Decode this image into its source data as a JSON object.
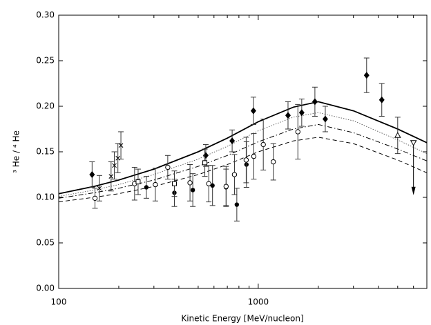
{
  "chart_data": {
    "type": "scatter",
    "x_label": "Kinetic Energy [MeV/nucleon]",
    "y_label": "³ He / ⁴ He",
    "log_x": true,
    "xlim": [
      100,
      7000
    ],
    "ylim": [
      0,
      0.3
    ],
    "xticks": [
      100,
      1000
    ],
    "xminorticks": [
      200,
      300,
      400,
      500,
      600,
      700,
      800,
      900,
      2000,
      3000,
      4000,
      5000,
      6000,
      7000
    ],
    "yticks": [
      {
        "value": 0,
        "label": "0.00"
      },
      0.05,
      {
        "value": 0.1,
        "label": "0.10"
      },
      0.15,
      {
        "value": 0.2,
        "label": "0.20"
      },
      0.25,
      {
        "value": 0.3,
        "label": "0.30"
      }
    ],
    "series": [
      {
        "marker": "diamond-filled",
        "color": "#000000",
        "x": [
          147,
          546,
          740,
          946,
          1410,
          1652,
          1923,
          2168,
          3493,
          4161
        ],
        "values": [
          0.125,
          0.146,
          0.162,
          0.195,
          0.19,
          0.193,
          0.205,
          0.186,
          0.234,
          0.207
        ],
        "errors": [
          0.014,
          0.012,
          0.012,
          0.015,
          0.015,
          0.015,
          0.016,
          0.014,
          0.019,
          0.018
        ]
      },
      {
        "marker": "circle-filled",
        "color": "#000000",
        "x": [
          275,
          380,
          470,
          590,
          690,
          781,
          873
        ],
        "values": [
          0.111,
          0.105,
          0.108,
          0.113,
          0.111,
          0.092,
          0.136
        ],
        "errors": [
          0.012,
          0.015,
          0.018,
          0.022,
          0.02,
          0.018,
          0.025
        ]
      },
      {
        "marker": "circle-open",
        "color": "#000000",
        "x": [
          152,
          240,
          305,
          352,
          455,
          565,
          690,
          760,
          870,
          950,
          1060,
          1190,
          1580
        ],
        "values": [
          0.099,
          0.115,
          0.114,
          0.133,
          0.116,
          0.115,
          0.112,
          0.125,
          0.141,
          0.145,
          0.158,
          0.139,
          0.172
        ],
        "errors": [
          0.011,
          0.018,
          0.018,
          0.013,
          0.02,
          0.02,
          0.022,
          0.022,
          0.025,
          0.025,
          0.028,
          0.02,
          0.03
        ]
      },
      {
        "marker": "cross",
        "color": "#000000",
        "x": [
          160,
          183,
          190,
          198,
          205
        ],
        "values": [
          0.11,
          0.123,
          0.135,
          0.143,
          0.157
        ],
        "errors": [
          0.014,
          0.016,
          0.015,
          0.016,
          0.015
        ]
      },
      {
        "marker": "square-open",
        "color": "#000000",
        "x": [
          250,
          380,
          540
        ],
        "values": [
          0.117,
          0.115,
          0.138
        ],
        "errors": [
          0.014,
          0.014,
          0.015
        ]
      },
      {
        "marker": "triangle-up-open",
        "color": "#000000",
        "x": [
          5000
        ],
        "values": [
          0.168
        ],
        "errors": [
          0.02
        ]
      },
      {
        "marker": "triangle-down-open",
        "color": "#000000",
        "upper_limit": true,
        "x": [
          6000
        ],
        "values": [
          0.16
        ],
        "errors": [
          0
        ]
      }
    ],
    "x": [
      100,
      150,
      200,
      300,
      500,
      700,
      1000,
      1500,
      2000,
      3000,
      5000,
      7000
    ],
    "curves": [
      {
        "dash": "solid",
        "color": "#000000",
        "values": [
          0.104,
          0.112,
          0.119,
          0.131,
          0.15,
          0.165,
          0.183,
          0.199,
          0.205,
          0.195,
          0.175,
          0.16
        ]
      },
      {
        "dash": "dotted",
        "color": "#555555",
        "values": [
          0.101,
          0.108,
          0.114,
          0.125,
          0.142,
          0.156,
          0.173,
          0.188,
          0.193,
          0.184,
          0.163,
          0.148
        ]
      },
      {
        "dash": "dashdot",
        "color": "#000000",
        "values": [
          0.099,
          0.105,
          0.11,
          0.119,
          0.134,
          0.146,
          0.161,
          0.175,
          0.18,
          0.171,
          0.153,
          0.14
        ]
      },
      {
        "dash": "dashed",
        "color": "#000000",
        "values": [
          0.095,
          0.1,
          0.104,
          0.112,
          0.125,
          0.136,
          0.15,
          0.162,
          0.166,
          0.159,
          0.141,
          0.127
        ]
      }
    ]
  }
}
